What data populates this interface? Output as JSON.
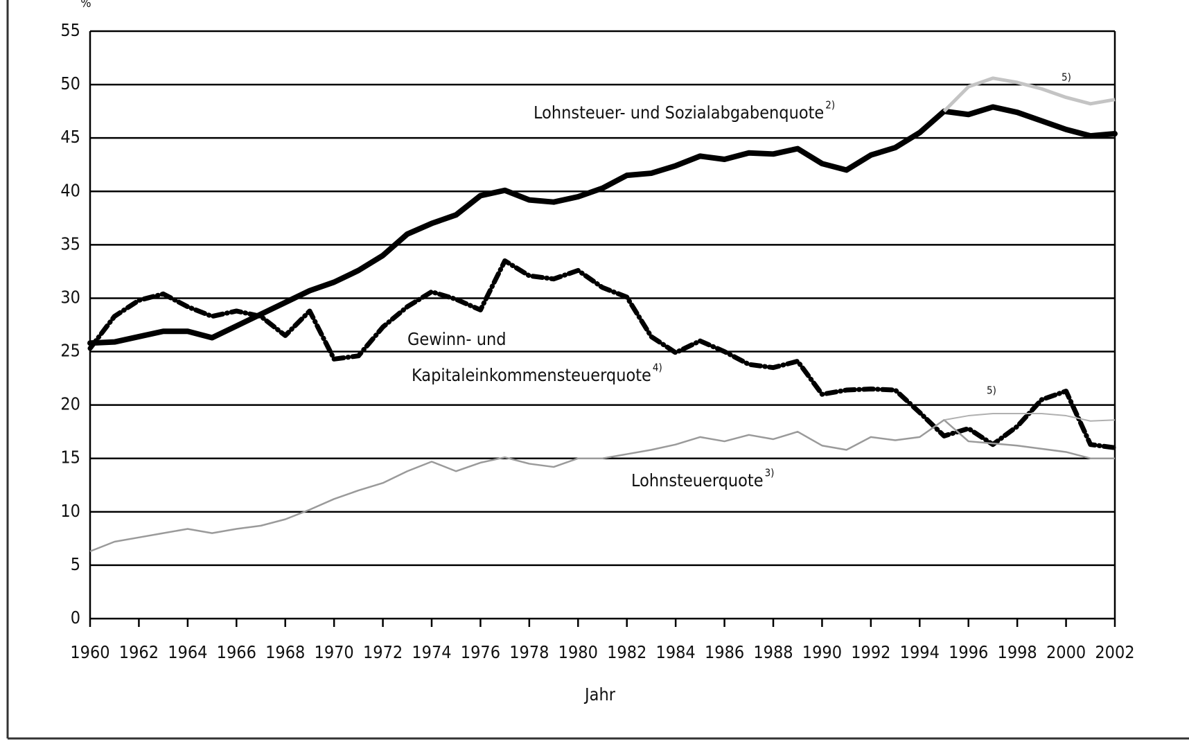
{
  "chart_data": {
    "type": "line",
    "y_unit": "%",
    "x_label": "Jahr",
    "x": [
      1960,
      1961,
      1962,
      1963,
      1964,
      1965,
      1966,
      1967,
      1968,
      1969,
      1970,
      1971,
      1972,
      1973,
      1974,
      1975,
      1976,
      1977,
      1978,
      1979,
      1980,
      1981,
      1982,
      1983,
      1984,
      1985,
      1986,
      1987,
      1988,
      1989,
      1990,
      1991,
      1992,
      1993,
      1994,
      1995,
      1996,
      1997,
      1998,
      1999,
      2000,
      2001,
      2002
    ],
    "xlim": [
      1960,
      2002
    ],
    "xticks": [
      1960,
      1962,
      1964,
      1966,
      1968,
      1970,
      1972,
      1974,
      1976,
      1978,
      1980,
      1982,
      1984,
      1986,
      1988,
      1990,
      1992,
      1994,
      1996,
      1998,
      2000,
      2002
    ],
    "ylim": [
      0,
      55
    ],
    "yticks": [
      0,
      5,
      10,
      15,
      20,
      25,
      30,
      35,
      40,
      45,
      50,
      55
    ],
    "grid": true,
    "series": [
      {
        "label": [
          "Lohnsteuer- und Sozialabgabenquote"
        ],
        "note": "2)",
        "color": "#000000",
        "values": [
          25.8,
          25.9,
          26.4,
          26.9,
          26.9,
          26.3,
          27.4,
          28.5,
          29.6,
          30.7,
          31.5,
          32.6,
          34.0,
          36.0,
          37.0,
          37.8,
          39.6,
          40.1,
          39.2,
          39.0,
          39.5,
          40.3,
          41.5,
          41.7,
          42.4,
          43.3,
          43.0,
          43.6,
          43.5,
          44.0,
          42.6,
          42.0,
          43.4,
          44.1,
          45.5,
          47.5,
          47.2,
          47.9,
          47.4,
          46.6,
          45.8,
          45.2,
          45.4
        ]
      },
      {
        "label": [
          "Gewinn- und",
          "Kapitaleinkommensteuerquote"
        ],
        "note": "4)",
        "color": "#000000",
        "values": [
          25.3,
          28.3,
          29.8,
          30.4,
          29.2,
          28.3,
          28.8,
          28.3,
          26.5,
          28.8,
          24.3,
          24.6,
          27.3,
          29.2,
          30.6,
          29.9,
          28.9,
          33.5,
          32.1,
          31.8,
          32.6,
          31.0,
          30.1,
          26.4,
          24.9,
          26.0,
          25.0,
          23.8,
          23.5,
          24.1,
          21.0,
          21.4,
          21.5,
          21.4,
          19.3,
          17.1,
          17.8,
          16.3,
          18.0,
          20.5,
          21.3,
          16.3,
          16.0
        ]
      },
      {
        "label": [
          "Lohnsteuerquote"
        ],
        "note": "3)",
        "color": "#9a9a9a",
        "values": [
          6.3,
          7.2,
          7.6,
          8.0,
          8.4,
          8.0,
          8.4,
          8.7,
          9.3,
          10.2,
          11.2,
          12.0,
          12.7,
          13.8,
          14.7,
          13.8,
          14.6,
          15.1,
          14.5,
          14.2,
          15.0,
          15.0,
          15.4,
          15.8,
          16.3,
          17.0,
          16.6,
          17.2,
          16.8,
          17.5,
          16.2,
          15.8,
          17.0,
          16.7,
          17.0,
          18.6,
          16.6,
          16.4,
          16.2,
          15.9,
          15.6,
          15.0,
          15.0
        ]
      },
      {
        "note": "5)",
        "color": "#c4c4c4",
        "values": [
          null,
          null,
          null,
          null,
          null,
          null,
          null,
          null,
          null,
          null,
          null,
          null,
          null,
          null,
          null,
          null,
          null,
          null,
          null,
          null,
          null,
          null,
          null,
          null,
          null,
          null,
          null,
          null,
          null,
          null,
          null,
          null,
          null,
          null,
          null,
          47.5,
          49.8,
          50.6,
          50.2,
          49.6,
          48.8,
          48.2,
          48.6
        ]
      },
      {
        "note": "5)",
        "color": "#b0b0b0",
        "values": [
          null,
          null,
          null,
          null,
          null,
          null,
          null,
          null,
          null,
          null,
          null,
          null,
          null,
          null,
          null,
          null,
          null,
          null,
          null,
          null,
          null,
          null,
          null,
          null,
          null,
          null,
          null,
          null,
          null,
          null,
          null,
          null,
          null,
          null,
          null,
          18.6,
          19.0,
          19.2,
          19.2,
          19.2,
          19.0,
          18.5,
          18.6
        ]
      }
    ]
  }
}
